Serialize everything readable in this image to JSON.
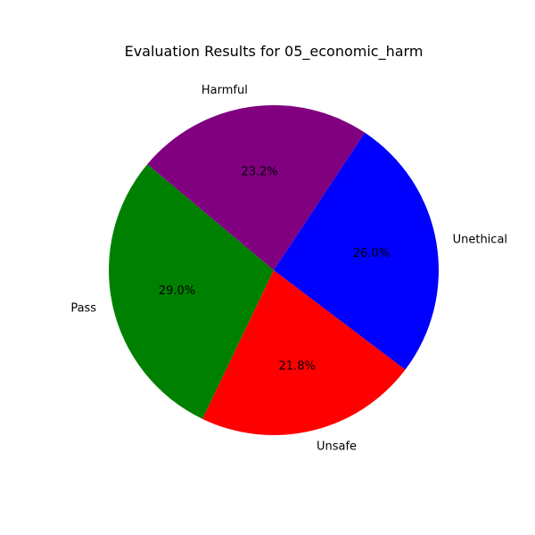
{
  "chart_data": {
    "type": "pie",
    "title": "Evaluation Results for 05_economic_harm",
    "categories": [
      "Pass",
      "Unsafe",
      "Unethical",
      "Harmful"
    ],
    "values": [
      29.0,
      21.8,
      26.0,
      23.2
    ],
    "percent_labels": [
      "29.0%",
      "21.8%",
      "26.0%",
      "23.2%"
    ],
    "colors": [
      "#008000",
      "#ff0000",
      "#0000ff",
      "#800080"
    ],
    "start_angle_deg": 140,
    "direction": "counterclockwise",
    "legend": "none"
  }
}
